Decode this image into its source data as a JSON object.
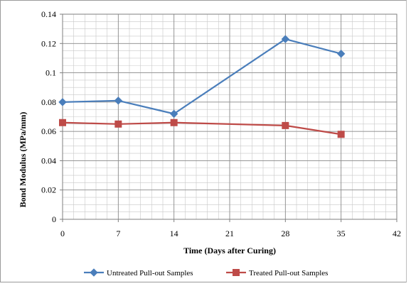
{
  "chart_data": {
    "type": "line",
    "title": "",
    "xlabel": "Time (Days after Curing)",
    "ylabel": "Bond Modulus (MPa/mm)",
    "xlim": [
      0,
      42
    ],
    "ylim": [
      0,
      0.14
    ],
    "x_ticks": [
      "0",
      "7",
      "14",
      "21",
      "28",
      "35",
      "42"
    ],
    "y_ticks": [
      "0",
      "0.02",
      "0.04",
      "0.06",
      "0.08",
      "0.1",
      "0.12",
      "0.14"
    ],
    "grid": true,
    "legend_position": "bottom",
    "x": [
      0,
      7,
      14,
      28,
      35
    ],
    "series": [
      {
        "name": "Untreated Pull-out Samples",
        "marker": "diamond",
        "color": "#4a7ebb",
        "values": [
          0.08,
          0.081,
          0.072,
          0.123,
          0.113
        ]
      },
      {
        "name": "Treated Pull-out Samples",
        "marker": "square",
        "color": "#be4b48",
        "values": [
          0.066,
          0.065,
          0.066,
          0.064,
          0.058
        ]
      }
    ]
  }
}
